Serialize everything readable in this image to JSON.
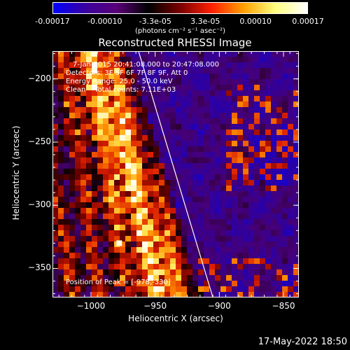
{
  "colorbar": {
    "ticks": [
      "-0.00017",
      "-0.00010",
      "-3.3e-05",
      "3.3e-05",
      "0.00010",
      "0.00017"
    ],
    "units": "(photons cm⁻² s⁻¹ asec⁻²)",
    "colors": [
      "#0000ff",
      "#3a00a0",
      "#5a0078",
      "#000000",
      "#7a0000",
      "#ff2000",
      "#ffa000",
      "#ffff80",
      "#ffffff"
    ]
  },
  "chart_data": {
    "type": "heatmap",
    "title": "Reconstructed RHESSI Image",
    "xlabel": "Heliocentric X (arcsec)",
    "ylabel": "Heliocentric Y (arcsec)",
    "xlim": [
      -1030,
      -838
    ],
    "ylim": [
      -373,
      -178
    ],
    "xticks": [
      -1000,
      -950,
      -900,
      -850
    ],
    "yticks": [
      -200,
      -250,
      -300,
      -350
    ],
    "limb_line": [
      [
        -963,
        -178
      ],
      [
        -905,
        -373
      ]
    ],
    "peak": [
      -978,
      -330
    ],
    "annotations": [
      "7-Jan-2015 20:41:08.000 to 20:47:08.000",
      "Detectors: 3F 5F 6F 7F 8F 9F, Att 0",
      "Energy Range: 25.0 - 50.0 keV",
      "Clean    Total counts: 7.11E+03"
    ],
    "peak_label": "Position of Peak = [-978,-330]"
  },
  "footer": {
    "datetime": "17-May-2022 18:50"
  }
}
